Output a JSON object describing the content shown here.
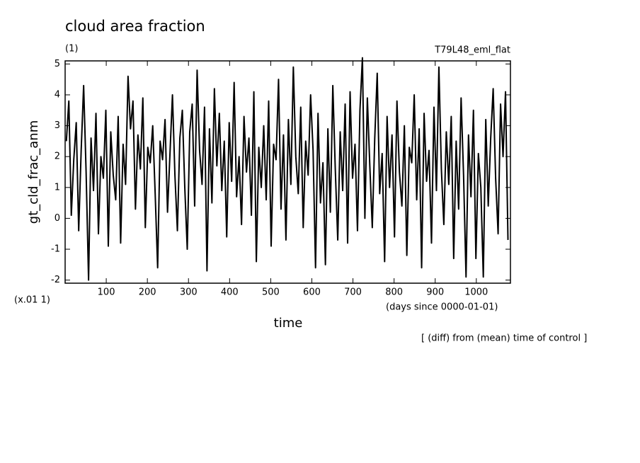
{
  "chart_data": {
    "type": "line",
    "title": "cloud area fraction",
    "subtitle": "(1)",
    "run_label": "T79L48_eml_flat",
    "ylabel": "gt_cld_frac_anm",
    "y_scale_note": "(x.01 1)",
    "xlabel": "time",
    "x_units": "(days since 0000-01-01)",
    "footnote": "[ (diff) from (mean) time of control ]",
    "xlim": [
      0,
      1083
    ],
    "xticks": [
      100,
      200,
      300,
      400,
      500,
      600,
      700,
      800,
      900,
      1000
    ],
    "ylim": [
      -2.1,
      5.1
    ],
    "yticks": [
      -2,
      -1,
      0,
      1,
      2,
      3,
      4,
      5
    ],
    "x": [
      3,
      9,
      15,
      21,
      27,
      33,
      39,
      45,
      51,
      57,
      63,
      69,
      75,
      81,
      87,
      93,
      99,
      105,
      111,
      117,
      123,
      129,
      135,
      141,
      147,
      153,
      159,
      165,
      171,
      177,
      183,
      189,
      195,
      201,
      207,
      213,
      219,
      225,
      231,
      237,
      243,
      249,
      255,
      261,
      267,
      273,
      279,
      285,
      291,
      297,
      303,
      309,
      315,
      321,
      327,
      333,
      339,
      345,
      351,
      357,
      363,
      369,
      375,
      381,
      387,
      393,
      399,
      405,
      411,
      417,
      423,
      429,
      435,
      441,
      447,
      453,
      459,
      465,
      471,
      477,
      483,
      489,
      495,
      501,
      507,
      513,
      519,
      525,
      531,
      537,
      543,
      549,
      555,
      561,
      567,
      573,
      579,
      585,
      591,
      597,
      603,
      609,
      615,
      621,
      627,
      633,
      639,
      645,
      651,
      657,
      663,
      669,
      675,
      681,
      687,
      693,
      699,
      705,
      711,
      717,
      723,
      729,
      735,
      741,
      747,
      753,
      759,
      765,
      771,
      777,
      783,
      789,
      795,
      801,
      807,
      813,
      819,
      825,
      831,
      837,
      843,
      849,
      855,
      861,
      867,
      873,
      879,
      885,
      891,
      897,
      903,
      909,
      915,
      921,
      927,
      933,
      939,
      945,
      951,
      957,
      963,
      969,
      975,
      981,
      987,
      993,
      999,
      1005,
      1011,
      1017,
      1023,
      1029,
      1035,
      1041,
      1047,
      1053,
      1059,
      1065,
      1071,
      1077
    ],
    "series": [
      {
        "color": "#000000",
        "values": [
          2.5,
          3.8,
          0.1,
          1.9,
          3.1,
          -0.4,
          2.2,
          4.3,
          1.5,
          -2.0,
          2.6,
          0.9,
          3.4,
          -0.5,
          2.0,
          1.3,
          3.5,
          -0.9,
          2.8,
          1.4,
          0.6,
          3.3,
          -0.8,
          2.4,
          1.1,
          4.6,
          2.9,
          3.8,
          0.3,
          2.7,
          1.6,
          3.9,
          -0.3,
          2.3,
          1.8,
          3.0,
          0.8,
          -1.6,
          2.5,
          1.9,
          3.2,
          0.2,
          2.1,
          4.0,
          1.4,
          -0.4,
          2.6,
          3.5,
          1.0,
          -1.0,
          2.8,
          3.7,
          0.4,
          4.8,
          2.2,
          1.1,
          3.6,
          -1.7,
          2.9,
          0.5,
          4.2,
          1.7,
          3.4,
          0.9,
          2.5,
          -0.6,
          3.1,
          1.2,
          4.4,
          0.7,
          2.0,
          -0.2,
          3.3,
          1.5,
          2.6,
          0.1,
          4.1,
          -1.4,
          2.3,
          1.0,
          3.0,
          0.6,
          3.8,
          -0.9,
          2.4,
          1.9,
          4.5,
          0.3,
          2.7,
          -0.7,
          3.2,
          1.1,
          4.9,
          2.0,
          0.8,
          3.6,
          -0.3,
          2.5,
          1.4,
          4.0,
          2.2,
          -1.6,
          3.4,
          0.5,
          1.8,
          -1.5,
          2.9,
          0.2,
          4.3,
          1.6,
          -0.7,
          2.8,
          0.9,
          3.7,
          -0.8,
          4.1,
          1.3,
          2.4,
          -0.4,
          3.5,
          5.2,
          0.0,
          3.9,
          1.7,
          -0.3,
          2.6,
          4.7,
          0.8,
          2.1,
          -1.4,
          3.3,
          1.0,
          2.7,
          -0.6,
          3.8,
          1.5,
          0.4,
          3.0,
          -1.2,
          2.3,
          1.8,
          4.0,
          0.6,
          2.9,
          -1.6,
          3.4,
          1.2,
          2.2,
          -0.8,
          3.6,
          0.9,
          4.9,
          1.6,
          -0.2,
          2.8,
          1.1,
          3.3,
          -1.3,
          2.5,
          0.3,
          3.9,
          1.4,
          -1.9,
          2.7,
          0.7,
          3.5,
          -1.3,
          2.1,
          1.0,
          -1.9,
          3.2,
          0.4,
          2.6,
          4.2,
          1.3,
          -0.5,
          3.7,
          2.0,
          4.1,
          -0.7
        ]
      }
    ]
  }
}
